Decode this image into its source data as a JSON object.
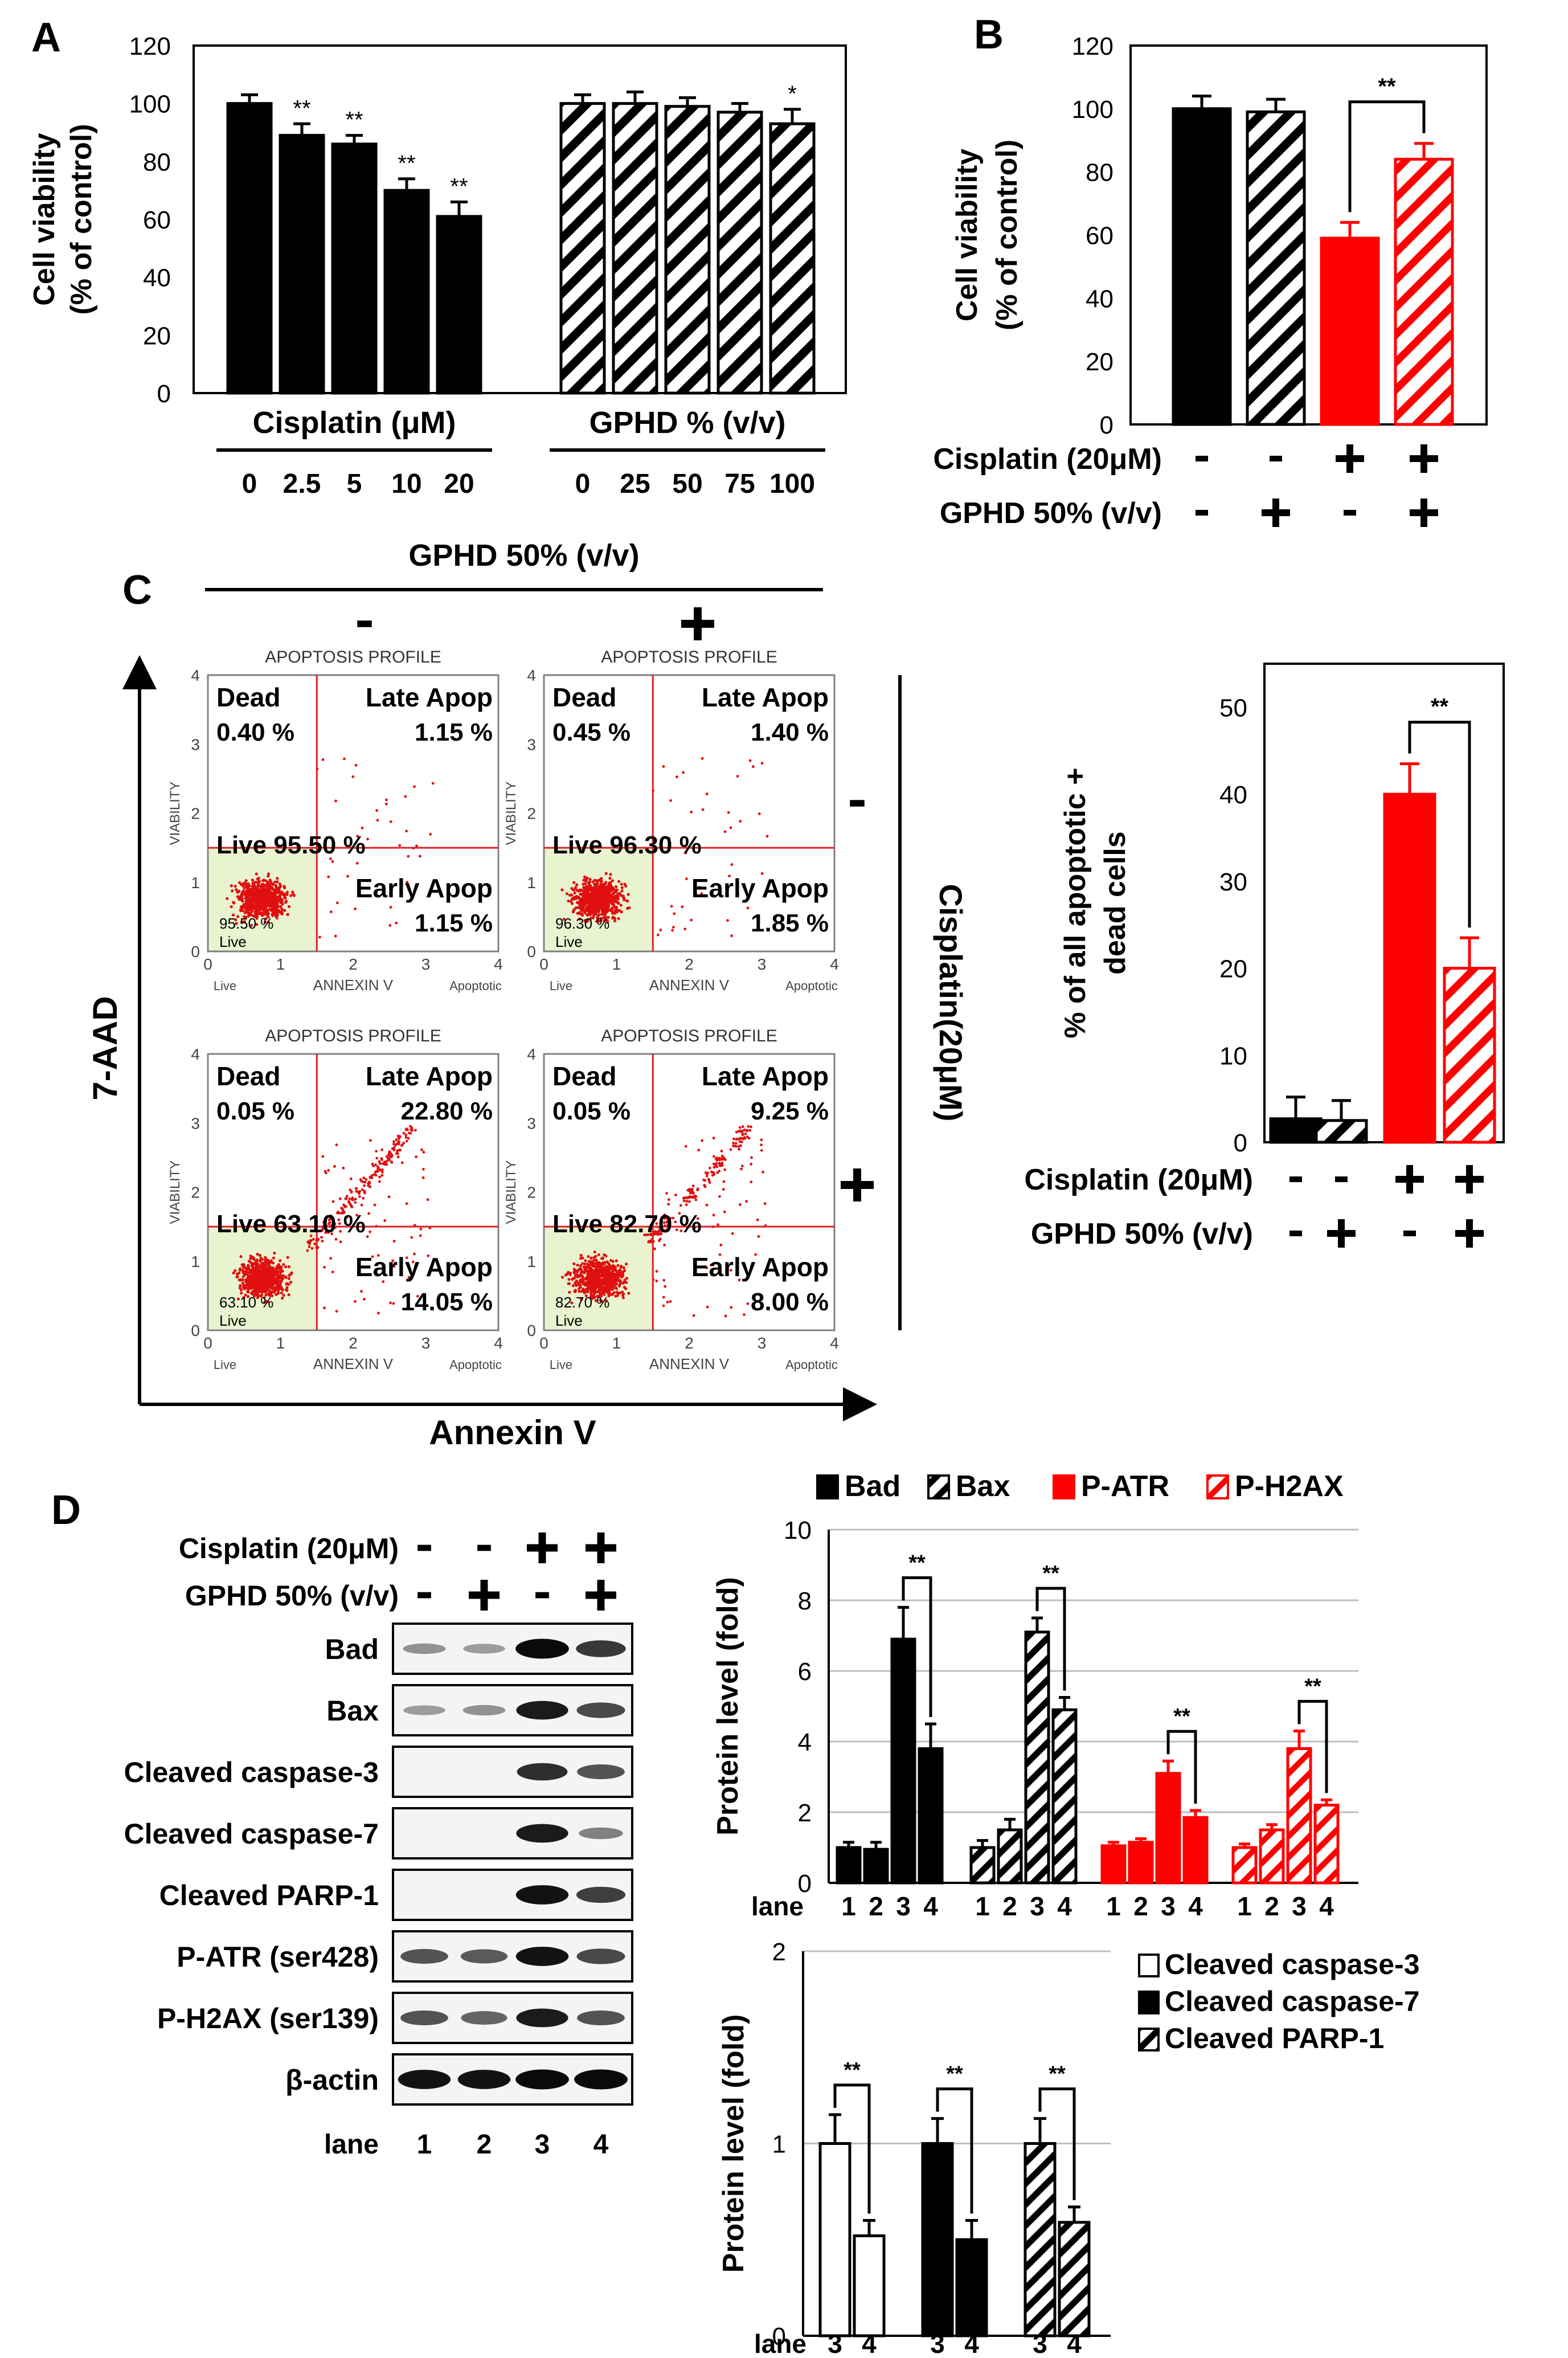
{
  "panel_letters": {
    "a": "A",
    "b": "B",
    "c": "C",
    "d": "D"
  },
  "colors": {
    "black": "#000000",
    "red": "#ff0000",
    "grid": "#bfbfbf",
    "dot": "#e01010",
    "live_quad": "#e9f3cf"
  },
  "chart_data": [
    {
      "id": "A",
      "type": "bar",
      "ylabel_lines": [
        "Cell viability",
        "(% of control)"
      ],
      "ylim": [
        0,
        120
      ],
      "yticks": [
        "0",
        "20",
        "40",
        "60",
        "80",
        "100",
        "120"
      ],
      "groups": [
        {
          "name": "Cisplatin (μM)",
          "pattern": "solid",
          "color": "#000000",
          "categories": [
            "0",
            "2.5",
            "5",
            "10",
            "20"
          ],
          "values": [
            100,
            89,
            86,
            70,
            61
          ],
          "errors": [
            3,
            4,
            3,
            4,
            5
          ],
          "stars": [
            "",
            "**",
            "**",
            "**",
            "**"
          ]
        },
        {
          "name": "GPHD % (v/v)",
          "pattern": "hatch",
          "color": "#000000",
          "categories": [
            "0",
            "25",
            "50",
            "75",
            "100"
          ],
          "values": [
            100,
            100,
            99,
            97,
            93
          ],
          "errors": [
            3,
            4,
            3,
            3,
            5
          ],
          "stars": [
            "",
            "",
            "",
            "",
            "*"
          ]
        }
      ]
    },
    {
      "id": "B",
      "type": "bar",
      "ylabel_lines": [
        "Cell viability",
        "(% of control)"
      ],
      "ylim": [
        0,
        120
      ],
      "yticks": [
        "0",
        "20",
        "40",
        "60",
        "80",
        "100",
        "120"
      ],
      "bars": [
        {
          "value": 100,
          "error": 4,
          "color": "#000000",
          "pattern": "solid"
        },
        {
          "value": 99,
          "error": 4,
          "color": "#000000",
          "pattern": "hatch"
        },
        {
          "value": 59,
          "error": 5,
          "color": "#ff0000",
          "pattern": "solid"
        },
        {
          "value": 84,
          "error": 5,
          "color": "#ff0000",
          "pattern": "hatch"
        }
      ],
      "significance": {
        "label": "**",
        "between": [
          2,
          3
        ]
      },
      "conditions": [
        {
          "label": "Cisplatin (20μM)",
          "signs": [
            "-",
            "-",
            "+",
            "+"
          ]
        },
        {
          "label": "GPHD 50% (v/v)",
          "signs": [
            "-",
            "+",
            "-",
            "+"
          ]
        }
      ]
    },
    {
      "id": "C",
      "type": "scatter",
      "title": "GPHD 50% (v/v)",
      "column_signs": [
        "-",
        "+"
      ],
      "row_signs": [
        "-",
        "+"
      ],
      "row_axis_label": "Cisplatin(20μM)",
      "y_axis_label": "7-AAD",
      "x_axis_label": "Annexin V",
      "plot_title": "APOPTOSIS PROFILE",
      "plot_ylabel": "VIABILITY",
      "plot_xlabel": "ANNEXIN V",
      "plot_x_left": "Live",
      "plot_x_right": "Apoptotic",
      "quadrant_live_label": "Live",
      "axis_ticks": [
        "0",
        "1",
        "2",
        "3",
        "4"
      ],
      "xlim": [
        0,
        4
      ],
      "ylim": [
        0,
        4
      ],
      "gate_x": 1.5,
      "gate_y": 1.5,
      "plots": [
        {
          "dead_label": "Dead",
          "dead": "0.40 %",
          "late_label": "Late Apop",
          "late": "1.15 %",
          "live_text": "Live 95.50 %",
          "live_small": "95.50 %",
          "early_label": "Early  Apop",
          "early": "1.15 %",
          "late_cluster": false,
          "seed": 3
        },
        {
          "dead_label": "Dead",
          "dead": "0.45 %",
          "late_label": "Late Apop",
          "late": "1.40 %",
          "live_text": "Live 96.30 %",
          "live_small": "96.30 %",
          "early_label": "Early  Apop",
          "early": "1.85 %",
          "late_cluster": false,
          "seed": 11
        },
        {
          "dead_label": "Dead",
          "dead": "0.05 %",
          "late_label": "Late Apop",
          "late": "22.80 %",
          "live_text": "Live 63.10 %",
          "live_small": "63.10 %",
          "early_label": "Early  Apop",
          "early": "14.05 %",
          "late_cluster": true,
          "seed": 23
        },
        {
          "dead_label": "Dead",
          "dead": "0.05 %",
          "late_label": "Late Apop",
          "late": "9.25 %",
          "live_text": "Live 82.70 %",
          "live_small": "82.70 %",
          "early_label": "Early  Apop",
          "early": "8.00 %",
          "late_cluster": true,
          "seed": 37
        }
      ]
    },
    {
      "id": "C-bar",
      "type": "bar",
      "ylabel_lines": [
        "% of all apoptotic +",
        "dead cells"
      ],
      "ylim": [
        0,
        55
      ],
      "yticks": [
        "0",
        "10",
        "20",
        "30",
        "40",
        "50"
      ],
      "bars": [
        {
          "value": 2.7,
          "error": 2.5,
          "color": "#000000",
          "pattern": "solid"
        },
        {
          "value": 2.5,
          "error": 2.3,
          "color": "#000000",
          "pattern": "hatch"
        },
        {
          "value": 40,
          "error": 3.5,
          "color": "#ff0000",
          "pattern": "solid"
        },
        {
          "value": 20,
          "error": 3.5,
          "color": "#ff0000",
          "pattern": "hatch"
        }
      ],
      "significance": {
        "label": "**",
        "between": [
          2,
          3
        ]
      },
      "conditions": [
        {
          "label": "Cisplatin (20μM)",
          "signs": [
            "-",
            "-",
            "+",
            "+"
          ]
        },
        {
          "label": "GPHD 50% (v/v)",
          "signs": [
            "-",
            "+",
            "-",
            "+"
          ]
        }
      ]
    },
    {
      "id": "D-blot",
      "type": "table",
      "conditions": [
        {
          "label": "Cisplatin (20μM)",
          "signs": [
            "-",
            "-",
            "+",
            "+"
          ]
        },
        {
          "label": "GPHD 50% (v/v)",
          "signs": [
            "-",
            "+",
            "-",
            "+"
          ]
        }
      ],
      "rows": [
        {
          "label": "Bad",
          "intensities": [
            0.2,
            0.15,
            0.95,
            0.7
          ]
        },
        {
          "label": "Bax",
          "intensities": [
            0.15,
            0.2,
            0.85,
            0.6
          ]
        },
        {
          "label": "Cleaved caspase-3",
          "intensities": [
            0,
            0,
            0.75,
            0.55
          ]
        },
        {
          "label": "Cleaved caspase-7",
          "intensities": [
            0,
            0,
            0.85,
            0.3
          ]
        },
        {
          "label": "Cleaved PARP-1",
          "intensities": [
            0,
            0,
            0.9,
            0.65
          ]
        },
        {
          "label": "P-ATR (ser428)",
          "intensities": [
            0.55,
            0.5,
            0.9,
            0.6
          ]
        },
        {
          "label": "P-H2AX (ser139)",
          "intensities": [
            0.55,
            0.45,
            0.85,
            0.55
          ]
        },
        {
          "label": "β-actin",
          "intensities": [
            0.9,
            0.9,
            0.95,
            0.95
          ]
        }
      ],
      "lane_label": "lane",
      "lanes": [
        "1",
        "2",
        "3",
        "4"
      ]
    },
    {
      "id": "D-top",
      "type": "bar",
      "ylabel": "Protein level (fold)",
      "ylim": [
        0,
        10
      ],
      "yticks": [
        "0",
        "2",
        "4",
        "6",
        "8",
        "10"
      ],
      "lane_label": "lane",
      "lanes": [
        "1",
        "2",
        "3",
        "4"
      ],
      "series": [
        {
          "name": "Bad",
          "color": "#000000",
          "pattern": "solid",
          "values": [
            1.0,
            0.95,
            6.9,
            3.8
          ],
          "errors": [
            0.15,
            0.2,
            0.9,
            0.7
          ],
          "sig": "**"
        },
        {
          "name": "Bax",
          "color": "#000000",
          "pattern": "hatch",
          "values": [
            1.0,
            1.5,
            7.1,
            4.9
          ],
          "errors": [
            0.2,
            0.3,
            0.4,
            0.35
          ],
          "sig": "**"
        },
        {
          "name": "P-ATR",
          "color": "#ff0000",
          "pattern": "solid",
          "values": [
            1.05,
            1.15,
            3.1,
            1.85
          ],
          "errors": [
            0.1,
            0.1,
            0.35,
            0.2
          ],
          "sig": "**"
        },
        {
          "name": "P-H2AX",
          "color": "#ff0000",
          "pattern": "hatch",
          "values": [
            1.0,
            1.5,
            3.8,
            2.2
          ],
          "errors": [
            0.1,
            0.15,
            0.5,
            0.15
          ],
          "sig": "**"
        }
      ]
    },
    {
      "id": "D-bottom",
      "type": "bar",
      "ylabel": "Protein level (fold)",
      "ylim": [
        0,
        2
      ],
      "yticks": [
        "0",
        "1",
        "2"
      ],
      "lane_label": "lane",
      "lanes": [
        "3",
        "4"
      ],
      "series": [
        {
          "name": "Cleaved caspase-3",
          "color": "#ffffff",
          "pattern": "open",
          "values": [
            1.0,
            0.52
          ],
          "errors": [
            0.15,
            0.08
          ],
          "sig": "**"
        },
        {
          "name": "Cleaved caspase-7",
          "color": "#000000",
          "pattern": "solid",
          "values": [
            1.0,
            0.5
          ],
          "errors": [
            0.13,
            0.1
          ],
          "sig": "**"
        },
        {
          "name": "Cleaved PARP-1",
          "color": "#000000",
          "pattern": "hatch",
          "values": [
            1.0,
            0.59
          ],
          "errors": [
            0.13,
            0.08
          ],
          "sig": "**"
        }
      ]
    }
  ]
}
